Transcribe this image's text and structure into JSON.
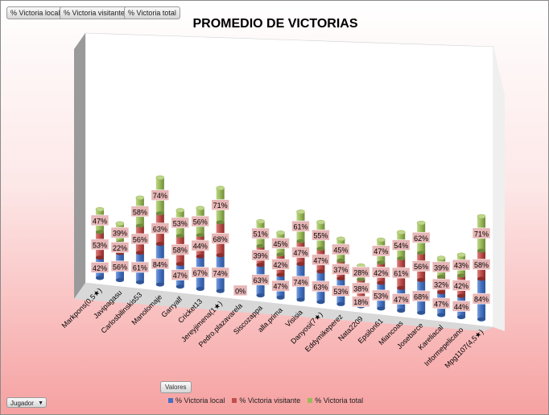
{
  "filters": [
    "% Victoria local",
    "% Victoria visitante",
    "% Victoria total"
  ],
  "values_button": "Valores",
  "row_field_button": "Jugador",
  "colors": {
    "local": "#4472c4",
    "visitante": "#c0504d",
    "total": "#9bbb59"
  },
  "chart_data": {
    "type": "bar",
    "stacked": true,
    "three_d": true,
    "title": "PROMEDIO DE VICTORIAS",
    "categories": [
      "Markpons(0,5★)",
      "Javipagasu",
      "Carlosbilinskis53",
      "Manolomaje",
      "Garryalf",
      "Cricket13",
      "Jereyjimena(1★)",
      "Pedro.plazavarela",
      "Siscozappa",
      "alla.prima",
      "Visisia",
      "Danyosi(7★)",
      "Eddymikeperez",
      "Nata2209",
      "Epsilon61",
      "Miancoas",
      "Josebarce",
      "Kareliacal",
      "Informepelicano",
      "Mpg1107(4,5★)"
    ],
    "series": [
      {
        "name": "% Victoria local",
        "values": [
          "42%",
          "56%",
          "61%",
          "84%",
          "47%",
          "67%",
          "74%",
          "0%",
          "63%",
          "47%",
          "74%",
          "63%",
          "53%",
          "18%",
          "53%",
          "47%",
          "68%",
          "47%",
          "44%",
          "84%"
        ]
      },
      {
        "name": "% Victoria visitante",
        "values": [
          "53%",
          "22%",
          "56%",
          "63%",
          "58%",
          "44%",
          "68%",
          "",
          "39%",
          "42%",
          "47%",
          "47%",
          "37%",
          "38%",
          "42%",
          "61%",
          "56%",
          "32%",
          "42%",
          "58%"
        ]
      },
      {
        "name": "% Victoria total",
        "values": [
          "47%",
          "39%",
          "58%",
          "74%",
          "53%",
          "56%",
          "71%",
          "",
          "51%",
          "45%",
          "61%",
          "55%",
          "45%",
          "28%",
          "47%",
          "54%",
          "62%",
          "39%",
          "43%",
          "71%"
        ]
      }
    ]
  }
}
